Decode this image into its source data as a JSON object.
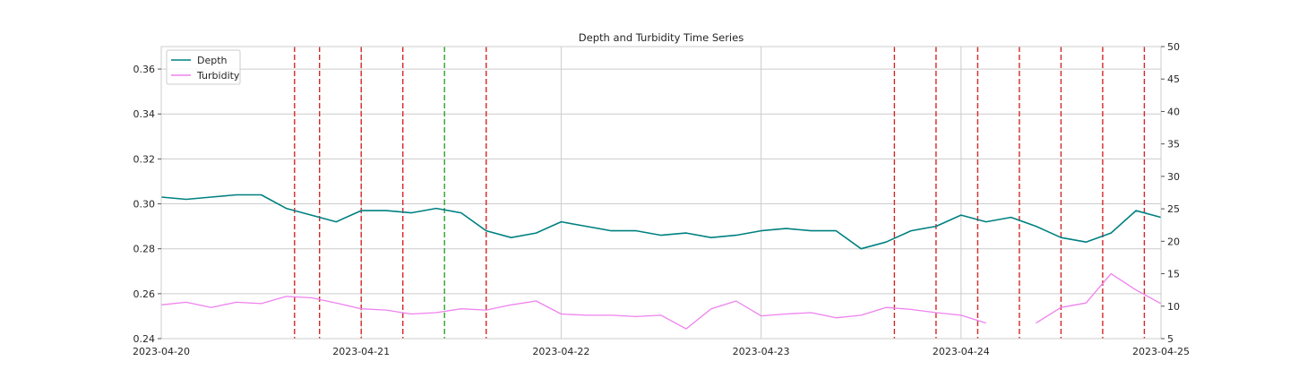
{
  "chart_data": {
    "type": "line",
    "title": "Depth and Turbidity Time Series",
    "xlabel": "",
    "ylabel": "",
    "x_range": [
      "2023-04-20",
      "2023-04-25"
    ],
    "x_ticks": [
      "2023-04-20",
      "2023-04-21",
      "2023-04-22",
      "2023-04-23",
      "2023-04-24",
      "2023-04-25"
    ],
    "y_left_range": [
      0.24,
      0.37
    ],
    "y_left_ticks": [
      0.24,
      0.26,
      0.28,
      0.3,
      0.32,
      0.34,
      0.36
    ],
    "y_right_range": [
      5,
      50
    ],
    "y_right_ticks": [
      5,
      10,
      15,
      20,
      25,
      30,
      35,
      40,
      45,
      50
    ],
    "grid": true,
    "legend_position": "top-left",
    "series": [
      {
        "name": "Depth",
        "axis": "left",
        "color": "#008080",
        "x": [
          "2023-04-20 00:00",
          "2023-04-20 03:00",
          "2023-04-20 06:00",
          "2023-04-20 09:00",
          "2023-04-20 12:00",
          "2023-04-20 15:00",
          "2023-04-20 18:00",
          "2023-04-20 21:00",
          "2023-04-21 00:00",
          "2023-04-21 03:00",
          "2023-04-21 06:00",
          "2023-04-21 09:00",
          "2023-04-21 12:00",
          "2023-04-21 15:00",
          "2023-04-21 18:00",
          "2023-04-21 21:00",
          "2023-04-22 00:00",
          "2023-04-22 03:00",
          "2023-04-22 06:00",
          "2023-04-22 09:00",
          "2023-04-22 12:00",
          "2023-04-22 15:00",
          "2023-04-22 18:00",
          "2023-04-22 21:00",
          "2023-04-23 00:00",
          "2023-04-23 03:00",
          "2023-04-23 06:00",
          "2023-04-23 09:00",
          "2023-04-23 12:00",
          "2023-04-23 15:00",
          "2023-04-23 18:00",
          "2023-04-23 21:00",
          "2023-04-24 00:00",
          "2023-04-24 03:00",
          "2023-04-24 06:00",
          "2023-04-24 09:00",
          "2023-04-24 12:00",
          "2023-04-24 15:00",
          "2023-04-24 18:00",
          "2023-04-24 21:00",
          "2023-04-25 00:00"
        ],
        "values": [
          0.303,
          0.302,
          0.303,
          0.304,
          0.304,
          0.298,
          0.295,
          0.292,
          0.297,
          0.297,
          0.296,
          0.298,
          0.296,
          0.288,
          0.285,
          0.287,
          0.292,
          0.29,
          0.288,
          0.288,
          0.286,
          0.287,
          0.285,
          0.286,
          0.288,
          0.289,
          0.288,
          0.288,
          0.28,
          0.283,
          0.288,
          0.29,
          0.295,
          0.292,
          0.294,
          0.29,
          0.285,
          0.283,
          0.287,
          0.297,
          0.294
        ]
      },
      {
        "name": "Turbidity",
        "axis": "right",
        "color": "#ee82ee",
        "x": [
          "2023-04-20 00:00",
          "2023-04-20 03:00",
          "2023-04-20 06:00",
          "2023-04-20 09:00",
          "2023-04-20 12:00",
          "2023-04-20 15:00",
          "2023-04-20 18:00",
          "2023-04-20 21:00",
          "2023-04-21 00:00",
          "2023-04-21 03:00",
          "2023-04-21 06:00",
          "2023-04-21 09:00",
          "2023-04-21 12:00",
          "2023-04-21 15:00",
          "2023-04-21 18:00",
          "2023-04-21 21:00",
          "2023-04-22 00:00",
          "2023-04-22 03:00",
          "2023-04-22 06:00",
          "2023-04-22 09:00",
          "2023-04-22 12:00",
          "2023-04-22 15:00",
          "2023-04-22 18:00",
          "2023-04-22 21:00",
          "2023-04-23 00:00",
          "2023-04-23 03:00",
          "2023-04-23 06:00",
          "2023-04-23 09:00",
          "2023-04-23 12:00",
          "2023-04-23 15:00",
          "2023-04-23 18:00",
          "2023-04-23 21:00",
          "2023-04-24 00:00",
          "2023-04-24 03:00",
          "2023-04-24 06:00",
          "2023-04-24 09:00",
          "2023-04-24 12:00",
          "2023-04-24 15:00",
          "2023-04-24 18:00",
          "2023-04-24 21:00",
          "2023-04-25 00:00"
        ],
        "values": [
          10.2,
          10.6,
          9.8,
          10.6,
          10.4,
          11.5,
          11.3,
          10.5,
          9.6,
          9.4,
          8.8,
          9.0,
          9.6,
          9.4,
          10.2,
          10.8,
          8.8,
          8.6,
          8.6,
          8.4,
          8.6,
          6.5,
          9.6,
          10.8,
          8.5,
          8.8,
          9.0,
          8.2,
          8.6,
          9.8,
          9.5,
          9.0,
          8.6,
          7.4,
          null,
          7.4,
          9.8,
          10.5,
          15.0,
          12.5,
          10.4
        ]
      }
    ],
    "vlines": [
      {
        "x": "2023-04-20 16:00",
        "color": "#d62728"
      },
      {
        "x": "2023-04-20 19:00",
        "color": "#d62728"
      },
      {
        "x": "2023-04-21 00:00",
        "color": "#d62728"
      },
      {
        "x": "2023-04-21 05:00",
        "color": "#d62728"
      },
      {
        "x": "2023-04-21 10:00",
        "color": "#2ca02c"
      },
      {
        "x": "2023-04-21 15:00",
        "color": "#d62728"
      },
      {
        "x": "2023-04-23 16:00",
        "color": "#d62728"
      },
      {
        "x": "2023-04-23 21:00",
        "color": "#d62728"
      },
      {
        "x": "2023-04-24 02:00",
        "color": "#d62728"
      },
      {
        "x": "2023-04-24 07:00",
        "color": "#d62728"
      },
      {
        "x": "2023-04-24 12:00",
        "color": "#d62728"
      },
      {
        "x": "2023-04-24 17:00",
        "color": "#d62728"
      },
      {
        "x": "2023-04-24 22:00",
        "color": "#d62728"
      }
    ]
  }
}
